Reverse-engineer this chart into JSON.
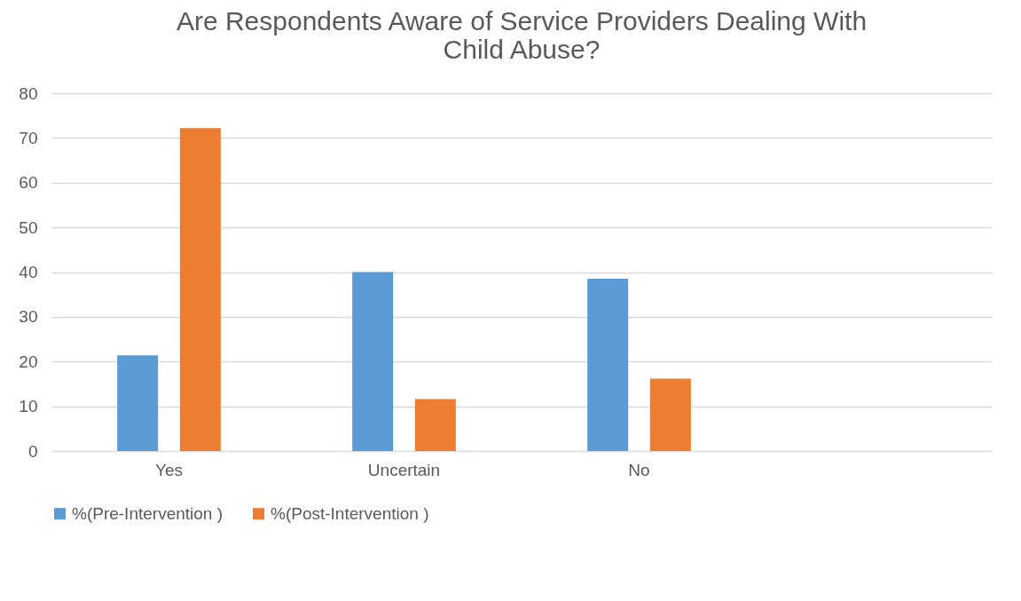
{
  "chart_data": {
    "type": "bar",
    "title": "Are Respondents Aware of Service Providers Dealing With Child Abuse?",
    "categories": [
      "Yes",
      "Uncertain",
      "No",
      null
    ],
    "series": [
      {
        "name": "%(Pre-Intervention )",
        "color": "#5b9bd5",
        "values": [
          21.4,
          40,
          38.5,
          null
        ]
      },
      {
        "name": "%(Post-Intervention )",
        "color": "#ed7d31",
        "values": [
          72.2,
          11.6,
          16.2,
          null
        ]
      }
    ],
    "ylim": [
      0,
      80
    ],
    "yticks": [
      0,
      10,
      20,
      30,
      40,
      50,
      60,
      70,
      80
    ],
    "grid": "y",
    "legend": "bottom"
  }
}
